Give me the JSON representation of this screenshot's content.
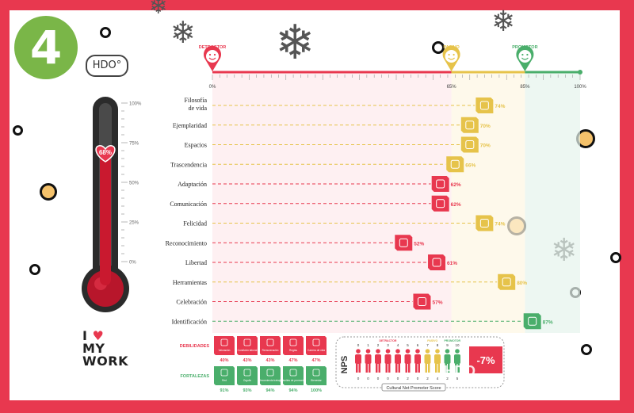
{
  "step_number": "4",
  "badge_label": "HDO°",
  "thermometer": {
    "value_label": "68%",
    "value": 68,
    "ticks": [
      "100%",
      "75%",
      "50%",
      "25%",
      "0%"
    ]
  },
  "logo": {
    "line1": "I",
    "line2": "MY",
    "line3": "WORK"
  },
  "colors": {
    "red": "#e8384f",
    "yellow": "#e6c34a",
    "green": "#4aae6b",
    "dark": "#222222"
  },
  "chart_data": {
    "type": "bar",
    "scale": {
      "ticks": [
        "0%",
        "65%",
        "85%",
        "100%"
      ],
      "tick_values": [
        0,
        65,
        85,
        100
      ],
      "markers": [
        {
          "label": "DETRACTOR",
          "value": 0,
          "color": "red"
        },
        {
          "label": "PASIVO",
          "value": 65,
          "color": "yellow"
        },
        {
          "label": "PROMOTOR",
          "value": 85,
          "color": "green"
        }
      ]
    },
    "categories": [
      "Filosofía de vida",
      "Ejemplaridad",
      "Espacios",
      "Trascendencia",
      "Adaptación",
      "Comunicación",
      "Felicidad",
      "Reconocimiento",
      "Libertad",
      "Herramientas",
      "Celebración",
      "Identificación"
    ],
    "values": [
      74,
      70,
      70,
      66,
      62,
      62,
      74,
      52,
      61,
      80,
      57,
      87
    ],
    "value_labels": [
      "74%",
      "70%",
      "70%",
      "66%",
      "62%",
      "62%",
      "74%",
      "52%",
      "61%",
      "80%",
      "57%",
      "87%"
    ]
  },
  "debilidades": {
    "label": "DEBILIDADES",
    "items": [
      {
        "name": "Valoración",
        "value": "40%"
      },
      {
        "name": "Condición laboral",
        "value": "43%"
      },
      {
        "name": "Remuneración",
        "value": "43%"
      },
      {
        "name": "Reglas",
        "value": "47%"
      },
      {
        "name": "Carrera de vida",
        "value": "47%"
      }
    ]
  },
  "fortalezas": {
    "label": "FORTALEZAS",
    "items": [
      {
        "name": "Red",
        "value": "91%"
      },
      {
        "name": "Orgullo",
        "value": "93%"
      },
      {
        "name": "Recomienda trabajo",
        "value": "94%"
      },
      {
        "name": "Trámites de promoción",
        "value": "94%"
      },
      {
        "name": "Bienestar",
        "value": "100%"
      }
    ]
  },
  "nps": {
    "title": "NPS",
    "groups": [
      "DETRACTOR",
      "PASIVO",
      "PROMOTOR"
    ],
    "scale": [
      "0",
      "1",
      "2",
      "3",
      "4",
      "5",
      "6",
      "7",
      "8",
      "9",
      "10"
    ],
    "bottom": [
      "0",
      "0",
      "0",
      "0",
      "0",
      "2",
      "0",
      "2",
      "4",
      "2",
      "5"
    ],
    "figure_colors": [
      "red",
      "red",
      "red",
      "red",
      "red",
      "red",
      "red",
      "yellow",
      "yellow",
      "green",
      "green"
    ],
    "score": "-7%",
    "watermark": "HDO",
    "caption": "Cultural Net Promoter Score"
  }
}
